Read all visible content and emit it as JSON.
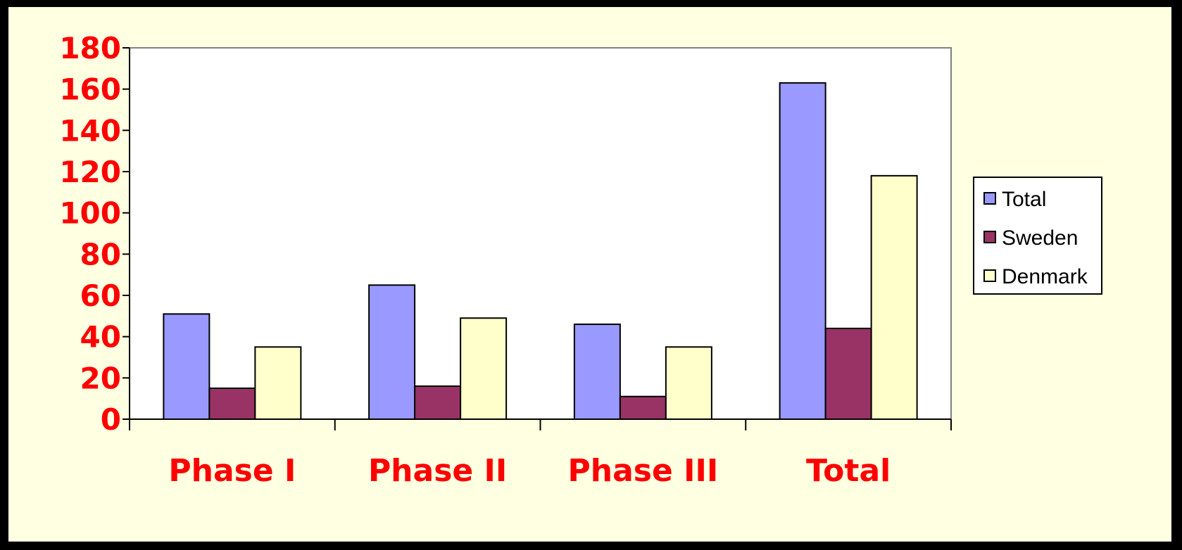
{
  "chart_data": {
    "type": "bar",
    "title": "",
    "xlabel": "",
    "ylabel": "",
    "categories": [
      "Phase I",
      "Phase II",
      "Phase III",
      "Total"
    ],
    "series": [
      {
        "name": "Total",
        "values": [
          51,
          65,
          46,
          163
        ],
        "color": "#9999ff"
      },
      {
        "name": "Sweden",
        "values": [
          15,
          16,
          11,
          44
        ],
        "color": "#993366"
      },
      {
        "name": "Denmark",
        "values": [
          35,
          49,
          35,
          118
        ],
        "color": "#ffffcc"
      }
    ],
    "ylim": [
      0,
      180
    ],
    "yticks": [
      "0",
      "20",
      "40",
      "60",
      "80",
      "100",
      "120",
      "140",
      "160",
      "180"
    ],
    "grid": false,
    "legend_position": "right",
    "colors": {
      "background": "#ffffe1",
      "plot_background": "#ffffff",
      "tick_labels": "#ff0000"
    }
  }
}
